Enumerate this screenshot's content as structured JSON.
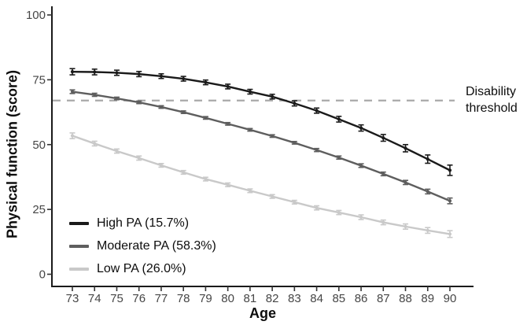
{
  "chart_data": {
    "type": "line",
    "title": "",
    "xlabel": "Age",
    "ylabel": "Physical function (score)",
    "x": [
      73,
      74,
      75,
      76,
      77,
      78,
      79,
      80,
      81,
      82,
      83,
      84,
      85,
      86,
      87,
      88,
      89,
      90
    ],
    "yticks": [
      0,
      25,
      50,
      75,
      100
    ],
    "ylim": [
      0,
      100
    ],
    "grid": false,
    "legend_position": "bottom-left",
    "background_color": "#ffffff",
    "axis_color": "#1a1a1a",
    "tick_label_color": "#464646",
    "series": [
      {
        "name": "High PA (15.7%)",
        "color": "#1a1a1a",
        "values": [
          78.1,
          78.0,
          77.7,
          77.2,
          76.4,
          75.4,
          74.0,
          72.4,
          70.4,
          68.5,
          65.9,
          63.1,
          59.8,
          56.4,
          52.6,
          48.6,
          44.4,
          40.1
        ],
        "errors": [
          1.2,
          1.1,
          1.0,
          1.0,
          0.9,
          0.9,
          0.9,
          0.9,
          0.9,
          0.9,
          1.0,
          1.0,
          1.1,
          1.2,
          1.3,
          1.4,
          1.6,
          2.0
        ]
      },
      {
        "name": "Moderate PA (58.3%)",
        "color": "#5e5e5e",
        "values": [
          70.4,
          69.2,
          67.8,
          66.3,
          64.5,
          62.5,
          60.3,
          58.0,
          55.7,
          53.3,
          50.7,
          47.9,
          45.0,
          41.9,
          38.7,
          35.4,
          31.9,
          28.3
        ],
        "errors": [
          0.7,
          0.6,
          0.5,
          0.5,
          0.5,
          0.5,
          0.5,
          0.5,
          0.5,
          0.5,
          0.5,
          0.6,
          0.6,
          0.7,
          0.7,
          0.8,
          0.9,
          1.1
        ]
      },
      {
        "name": "Low PA (26.0%)",
        "color": "#c9c9c9",
        "values": [
          53.4,
          50.4,
          47.5,
          44.8,
          42.0,
          39.3,
          36.7,
          34.5,
          32.2,
          30.0,
          27.8,
          25.6,
          23.8,
          22.0,
          20.0,
          18.4,
          16.9,
          15.5
        ],
        "errors": [
          1.1,
          0.9,
          0.8,
          0.8,
          0.7,
          0.7,
          0.7,
          0.7,
          0.7,
          0.7,
          0.7,
          0.8,
          0.8,
          0.9,
          0.9,
          1.0,
          1.1,
          1.3
        ]
      }
    ],
    "threshold": {
      "value": 67,
      "label": "Disability threshold",
      "color": "#a9a9a9",
      "style": "dashed"
    }
  }
}
